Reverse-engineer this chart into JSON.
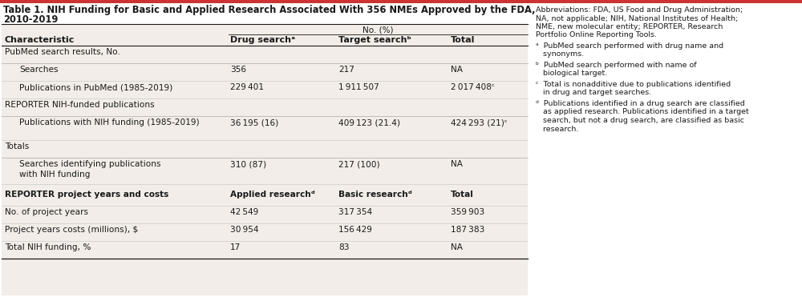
{
  "title_line1": "Table 1. NIH Funding for Basic and Applied Research Associated With 356 NMEs Approved by the FDA,",
  "title_line2": "2010-2019",
  "accent_color": "#cc3333",
  "bg_color": "#f2ede8",
  "text_color": "#1a1a1a",
  "header_no_pct": "No. (%)",
  "col_headers": [
    "Characteristic",
    "Drug searchᵃ",
    "Target searchᵇ",
    "Total"
  ],
  "rows": [
    {
      "label": "PubMed search results, No.",
      "v1": "",
      "v2": "",
      "v3": "",
      "indent": false,
      "section": true,
      "subheader": false
    },
    {
      "label": "Searches",
      "v1": "356",
      "v2": "217",
      "v3": "NA",
      "indent": true,
      "section": false,
      "subheader": false
    },
    {
      "label": "Publications in PubMed (1985-2019)",
      "v1": "229 401",
      "v2": "1 911 507",
      "v3": "2 017 408ᶜ",
      "indent": true,
      "section": false,
      "subheader": false
    },
    {
      "label": "REPORTER NIH-funded publications",
      "v1": "",
      "v2": "",
      "v3": "",
      "indent": false,
      "section": true,
      "subheader": false
    },
    {
      "label": "Publications with NIH funding (1985-2019)",
      "v1": "36 195 (16)",
      "v2": "409 123 (21.4)",
      "v3": "424 293 (21)ᶜ",
      "indent": true,
      "section": false,
      "subheader": false
    },
    {
      "label": "Totals",
      "v1": "",
      "v2": "",
      "v3": "",
      "indent": false,
      "section": true,
      "subheader": false
    },
    {
      "label": "Searches identifying publications\nwith NIH funding",
      "v1": "310 (87)",
      "v2": "217 (100)",
      "v3": "NA",
      "indent": true,
      "section": false,
      "subheader": false
    },
    {
      "label": "REPORTER project years and costs",
      "v1": "Applied researchᵈ",
      "v2": "Basic researchᵈ",
      "v3": "Total",
      "indent": false,
      "section": true,
      "subheader": true
    },
    {
      "label": "No. of project years",
      "v1": "42 549",
      "v2": "317 354",
      "v3": "359 903",
      "indent": false,
      "section": false,
      "subheader": false
    },
    {
      "label": "Project years costs (millions), $",
      "v1": "30 954",
      "v2": "156 429",
      "v3": "187 383",
      "indent": false,
      "section": false,
      "subheader": false
    },
    {
      "label": "Total NIH funding, %",
      "v1": "17",
      "v2": "83",
      "v3": "NA",
      "indent": false,
      "section": false,
      "subheader": false
    }
  ],
  "fn_abbrev": "Abbreviations: FDA, US Food and Drug Administration;\nNA, not applicable; NIH, National Institutes of Health;\nNME, new molecular entity; REPORTER, Research\nPortfolio Online Reporting Tools.",
  "fn_a": "ᵃ  PubMed search performed with drug name and\n   synonyms.",
  "fn_b": "ᵇ  PubMed search performed with name of\n   biological target.",
  "fn_c": "ᶜ  Total is nonadditive due to publications identified\n   in drug and target searches.",
  "fn_d": "ᵈ  Publications identified in a drug search are classified\n   as applied research. Publications identified in a target\n   search, but not a drug search, are classified as basic\n   research."
}
